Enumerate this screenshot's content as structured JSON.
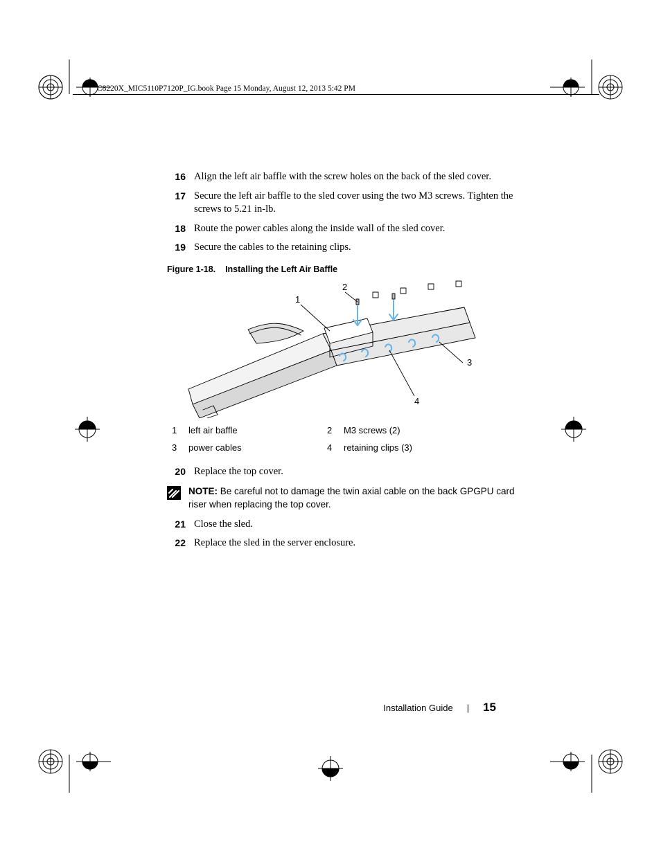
{
  "header": {
    "runningHead": "C8220X_MIC5110P7120P_IG.book  Page 15  Monday, August 12, 2013  5:42 PM"
  },
  "steps_a": [
    {
      "n": "16",
      "t": "Align the left air baffle with the screw holes on the back of the sled cover."
    },
    {
      "n": "17",
      "t": "Secure the left air baffle to the sled cover using the two M3 screws. Tighten the screws to 5.21 in-lb."
    },
    {
      "n": "18",
      "t": "Route the power cables along the inside wall of the sled cover."
    },
    {
      "n": "19",
      "t": "Secure the cables to the retaining clips."
    }
  ],
  "figure": {
    "caption_prefix": "Figure 1-18.",
    "caption_title": "Installing the Left Air Baffle",
    "callouts": {
      "c1": "1",
      "c2": "2",
      "c3": "3",
      "c4": "4"
    },
    "legend": [
      {
        "n": "1",
        "t": "left air baffle"
      },
      {
        "n": "2",
        "t": "M3 screws (2)"
      },
      {
        "n": "3",
        "t": "power cables"
      },
      {
        "n": "4",
        "t": "retaining clips (3)"
      }
    ],
    "colors": {
      "highlight": "#66b4ea",
      "line": "#000000",
      "metal_light": "#f3f3f3",
      "metal_mid": "#d8d8d8",
      "metal_dark": "#bcbcbc"
    }
  },
  "steps_b_first": {
    "n": "20",
    "t": "Replace the top cover."
  },
  "note": {
    "label": "NOTE:",
    "text": "Be careful not to damage the twin axial cable on the back GPGPU card riser when replacing the top cover."
  },
  "steps_b_rest": [
    {
      "n": "21",
      "t": "Close the sled."
    },
    {
      "n": "22",
      "t": "Replace the sled in the server enclosure."
    }
  ],
  "footer": {
    "title": "Installation Guide",
    "sep": "|",
    "page": "15"
  },
  "cropmark_color": "#000000"
}
